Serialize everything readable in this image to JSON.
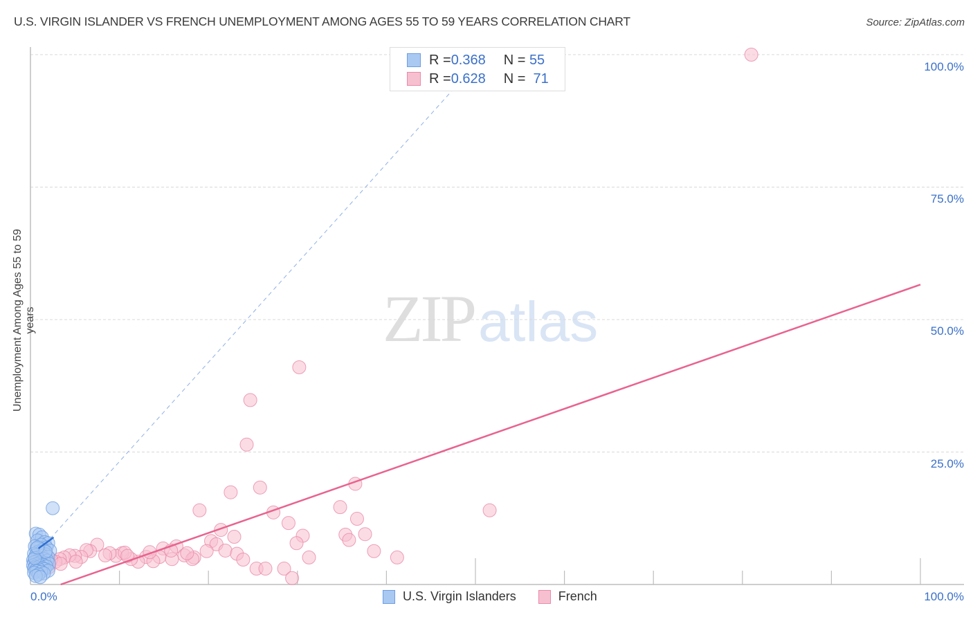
{
  "header": {
    "title": "U.S. VIRGIN ISLANDER VS FRENCH UNEMPLOYMENT AMONG AGES 55 TO 59 YEARS CORRELATION CHART",
    "source": "Source: ZipAtlas.com"
  },
  "watermark": {
    "zip": "ZIP",
    "atlas": "atlas"
  },
  "stats_legend": {
    "rows": [
      {
        "series": "U.S. Virgin Islanders",
        "r_label": "R = ",
        "r_value": "0.368",
        "n_label": "N = ",
        "n_value": "55",
        "color": "#a9c9f3",
        "border": "#6d9de0"
      },
      {
        "series": "French",
        "r_label": "R = ",
        "r_value": "0.628",
        "n_label": "N = ",
        "n_value": " 71",
        "color": "#f7c0d0",
        "border": "#e88aa8"
      }
    ]
  },
  "bottom_legend": {
    "items": [
      {
        "label": "U.S. Virgin Islanders",
        "color": "#a9c9f3",
        "border": "#6d9de0"
      },
      {
        "label": "French",
        "color": "#f7c0d0",
        "border": "#e88aa8"
      }
    ]
  },
  "axes": {
    "x_min_label": "0.0%",
    "x_max_label": "100.0%",
    "y_tick_labels": [
      "100.0%",
      "75.0%",
      "50.0%",
      "25.0%"
    ],
    "ylabel": "Unemployment Among Ages 55 to 59 years"
  },
  "chart_data": {
    "type": "scatter",
    "title": "U.S. Virgin Islander vs French Unemployment Among Ages 55 to 59 years Correlation Chart",
    "xlabel": "",
    "ylabel": "Unemployment Among Ages 55 to 59 years",
    "xlim": [
      0,
      100
    ],
    "ylim": [
      0,
      100
    ],
    "x_ticks": [
      0,
      10,
      20,
      30,
      40,
      50,
      60,
      70,
      80,
      90,
      100
    ],
    "y_ticks": [
      25,
      50,
      75,
      100
    ],
    "grid": "horizontal dashed",
    "legend_position": "top-center and bottom",
    "series": [
      {
        "name": "U.S. Virgin Islanders",
        "color": "#6d9de0",
        "fill": "#a9c9f3",
        "R": 0.368,
        "N": 55,
        "trendline": {
          "x": [
            0.9,
            2.6
          ],
          "y": [
            6.8,
            8.9
          ],
          "extended_dashed": {
            "x": [
              2.2,
              51.0
            ],
            "y": [
              8.6,
              100.0
            ]
          }
        },
        "points": [
          [
            2.5,
            14.4
          ],
          [
            0.6,
            9.6
          ],
          [
            1.0,
            9.4
          ],
          [
            1.3,
            8.9
          ],
          [
            0.8,
            8.3
          ],
          [
            1.6,
            8.0
          ],
          [
            2.0,
            7.8
          ],
          [
            1.2,
            7.5
          ],
          [
            0.5,
            7.2
          ],
          [
            1.8,
            7.0
          ],
          [
            0.7,
            6.8
          ],
          [
            1.4,
            6.6
          ],
          [
            2.2,
            6.4
          ],
          [
            0.9,
            6.2
          ],
          [
            1.1,
            6.0
          ],
          [
            0.4,
            5.8
          ],
          [
            1.7,
            5.7
          ],
          [
            0.6,
            5.5
          ],
          [
            1.3,
            5.4
          ],
          [
            2.0,
            5.2
          ],
          [
            0.8,
            5.1
          ],
          [
            0.5,
            4.9
          ],
          [
            1.5,
            4.8
          ],
          [
            1.0,
            4.7
          ],
          [
            0.3,
            4.6
          ],
          [
            1.9,
            4.5
          ],
          [
            0.7,
            4.4
          ],
          [
            1.2,
            4.3
          ],
          [
            0.4,
            4.2
          ],
          [
            1.6,
            4.1
          ],
          [
            0.9,
            4.0
          ],
          [
            2.1,
            3.9
          ],
          [
            0.6,
            3.8
          ],
          [
            1.4,
            3.7
          ],
          [
            0.3,
            3.6
          ],
          [
            1.1,
            3.5
          ],
          [
            1.8,
            3.4
          ],
          [
            0.5,
            3.3
          ],
          [
            0.8,
            3.2
          ],
          [
            1.3,
            3.1
          ],
          [
            0.4,
            3.0
          ],
          [
            1.6,
            2.9
          ],
          [
            1.0,
            2.8
          ],
          [
            0.6,
            2.7
          ],
          [
            2.0,
            2.6
          ],
          [
            0.7,
            2.5
          ],
          [
            1.2,
            2.4
          ],
          [
            0.4,
            2.2
          ],
          [
            1.5,
            2.1
          ],
          [
            0.9,
            1.9
          ],
          [
            0.6,
            1.6
          ],
          [
            1.1,
            1.4
          ],
          [
            0.5,
            5.0
          ],
          [
            1.7,
            6.2
          ],
          [
            0.8,
            7.0
          ]
        ]
      },
      {
        "name": "French",
        "color": "#e88aa8",
        "fill": "#f7c0d0",
        "R": 0.628,
        "N": 71,
        "trendline": {
          "x": [
            3.4,
            100.0
          ],
          "y": [
            0.0,
            56.6
          ]
        },
        "points": [
          [
            81.0,
            100.0
          ],
          [
            30.2,
            41.0
          ],
          [
            24.7,
            34.8
          ],
          [
            24.3,
            26.4
          ],
          [
            25.8,
            18.3
          ],
          [
            22.5,
            17.4
          ],
          [
            36.5,
            19.0
          ],
          [
            19.0,
            14.0
          ],
          [
            34.8,
            14.6
          ],
          [
            51.6,
            14.0
          ],
          [
            27.3,
            13.6
          ],
          [
            36.7,
            12.4
          ],
          [
            29.0,
            11.6
          ],
          [
            21.4,
            10.3
          ],
          [
            35.4,
            9.4
          ],
          [
            37.6,
            9.5
          ],
          [
            30.6,
            9.2
          ],
          [
            22.9,
            9.0
          ],
          [
            20.3,
            8.2
          ],
          [
            20.9,
            7.6
          ],
          [
            35.8,
            8.4
          ],
          [
            29.9,
            7.8
          ],
          [
            19.8,
            6.3
          ],
          [
            21.9,
            6.4
          ],
          [
            38.6,
            6.3
          ],
          [
            23.2,
            5.8
          ],
          [
            31.3,
            5.1
          ],
          [
            41.2,
            5.1
          ],
          [
            23.9,
            4.7
          ],
          [
            25.4,
            3.0
          ],
          [
            26.4,
            3.0
          ],
          [
            28.5,
            3.0
          ],
          [
            29.4,
            1.2
          ],
          [
            14.9,
            6.8
          ],
          [
            16.4,
            7.2
          ],
          [
            17.3,
            5.5
          ],
          [
            18.4,
            5.1
          ],
          [
            18.2,
            4.8
          ],
          [
            14.5,
            5.2
          ],
          [
            15.9,
            4.8
          ],
          [
            13.0,
            5.2
          ],
          [
            13.8,
            4.4
          ],
          [
            12.1,
            4.3
          ],
          [
            11.3,
            4.8
          ],
          [
            10.3,
            5.9
          ],
          [
            9.6,
            5.4
          ],
          [
            8.9,
            5.9
          ],
          [
            8.4,
            5.5
          ],
          [
            7.5,
            7.5
          ],
          [
            6.7,
            6.3
          ],
          [
            6.3,
            6.5
          ],
          [
            5.7,
            5.2
          ],
          [
            5.0,
            5.4
          ],
          [
            4.4,
            5.5
          ],
          [
            3.8,
            5.1
          ],
          [
            3.3,
            4.8
          ],
          [
            2.8,
            4.3
          ],
          [
            2.3,
            4.7
          ],
          [
            1.9,
            5.2
          ],
          [
            1.6,
            5.9
          ],
          [
            1.2,
            3.9
          ],
          [
            0.9,
            4.6
          ],
          [
            0.6,
            3.3
          ],
          [
            10.6,
            6.0
          ],
          [
            17.6,
            5.9
          ],
          [
            13.4,
            6.1
          ],
          [
            10.9,
            5.4
          ],
          [
            15.8,
            6.4
          ],
          [
            2.1,
            3.3
          ],
          [
            3.4,
            3.9
          ],
          [
            5.1,
            4.3
          ]
        ]
      }
    ]
  }
}
